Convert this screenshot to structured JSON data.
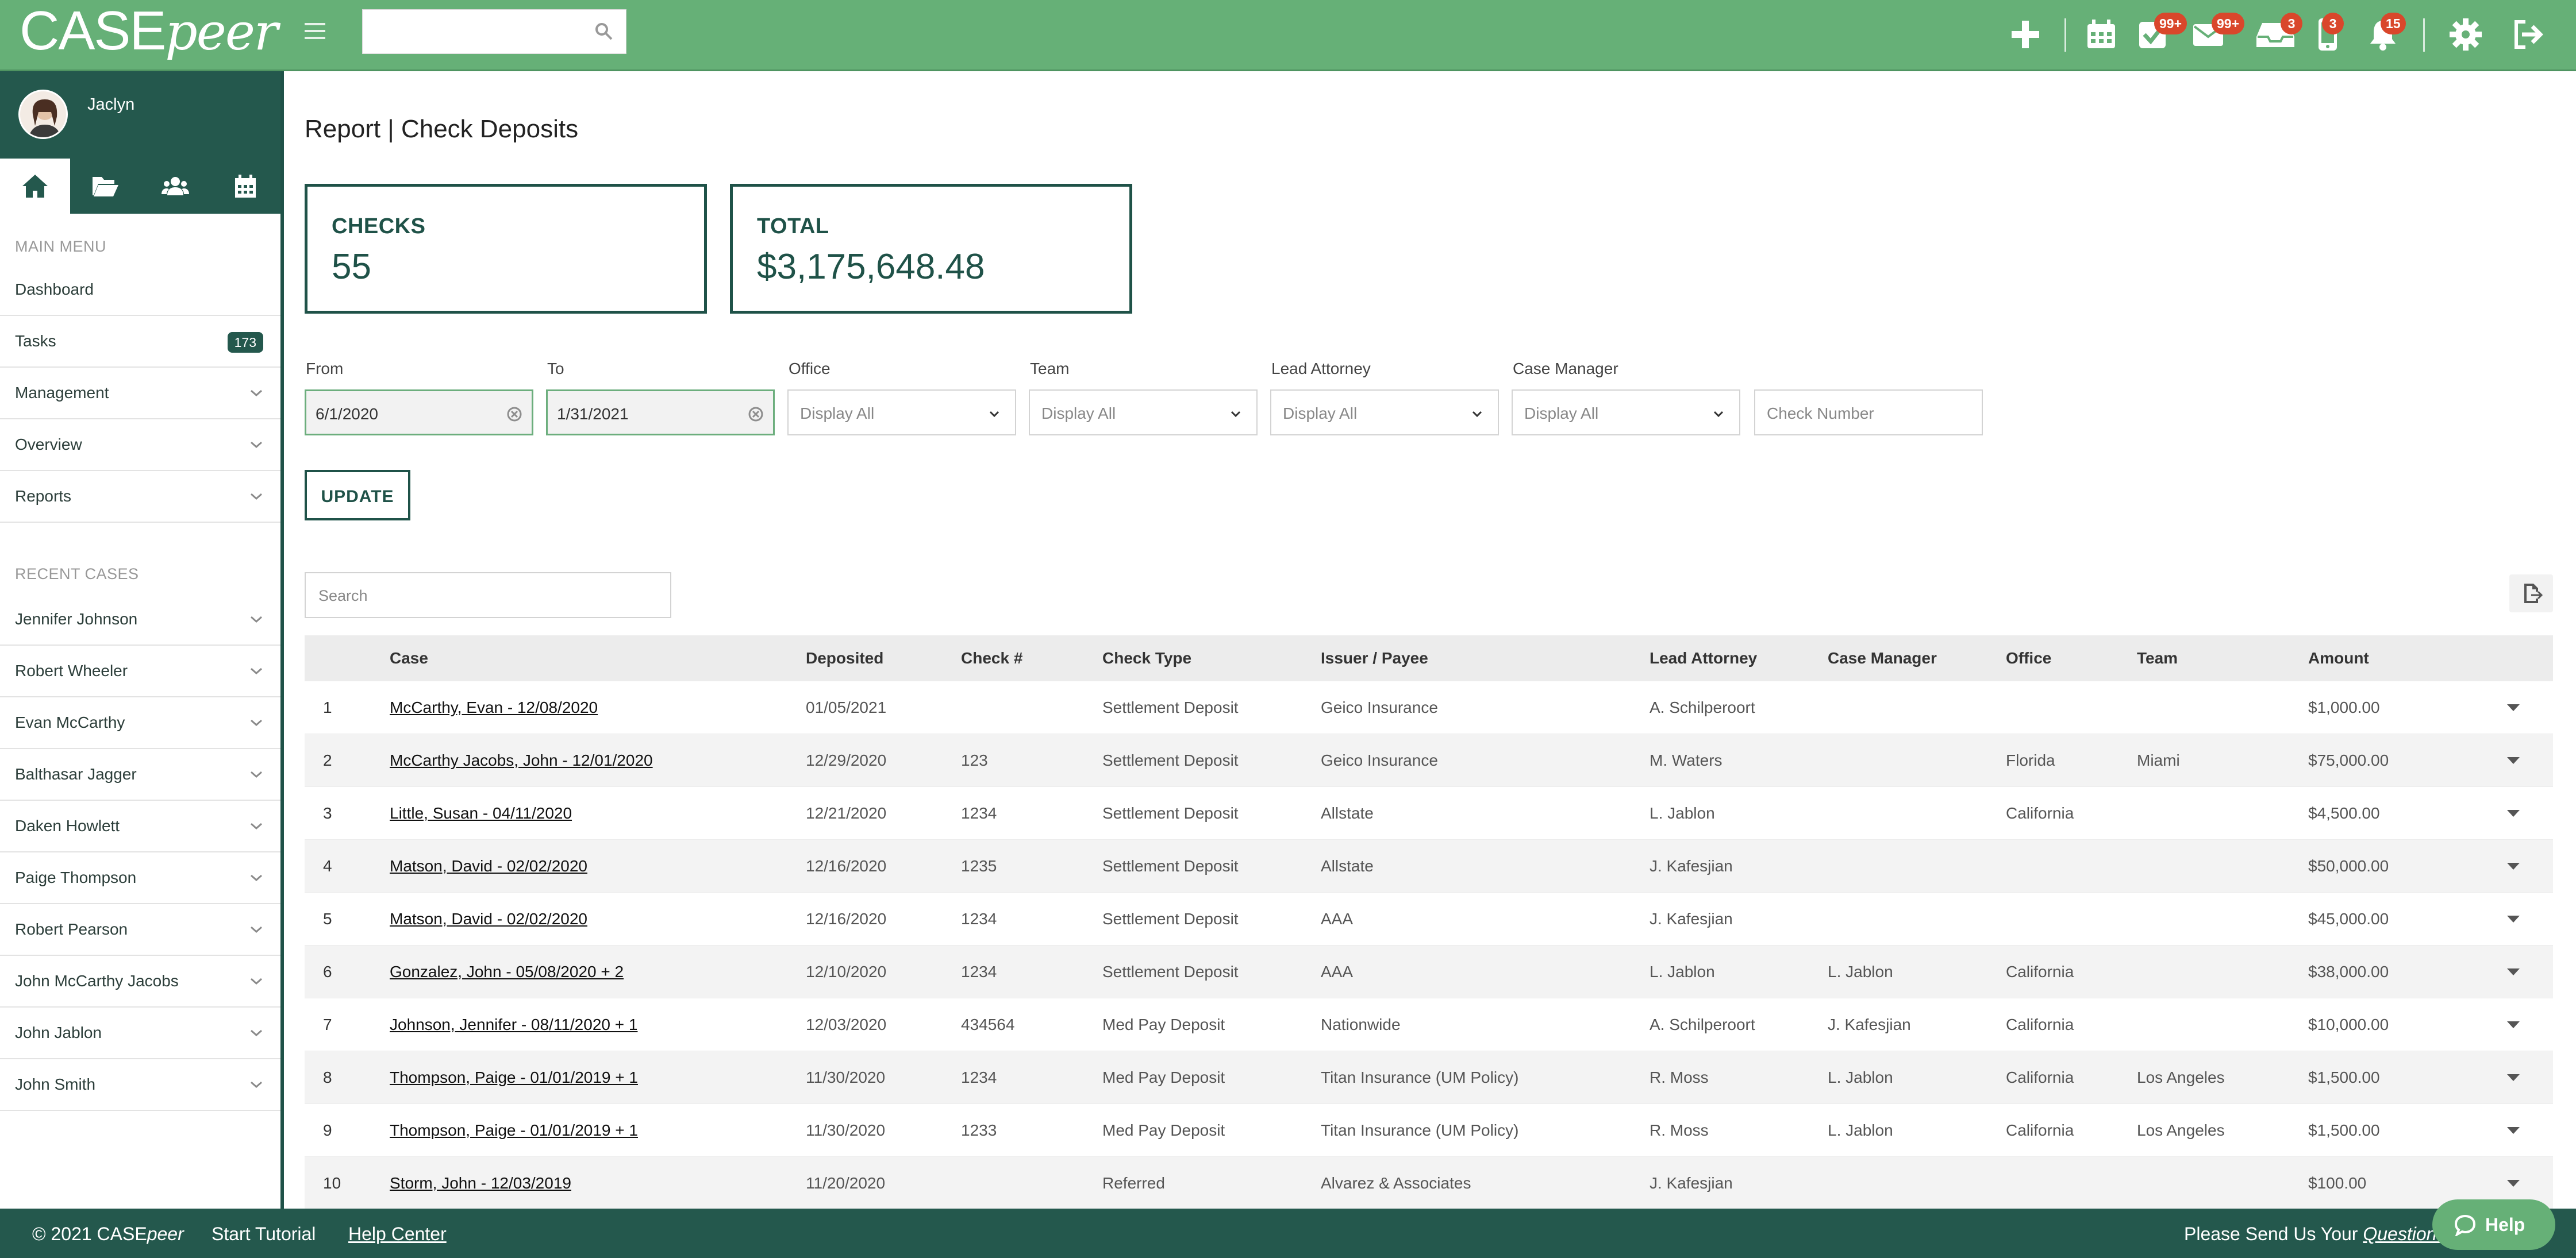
{
  "app": {
    "logo_main": "CASE",
    "logo_sub": "peer"
  },
  "header": {
    "search_placeholder": "",
    "badges": {
      "tasks": "99+",
      "mail": "99+",
      "inbox": "3",
      "phone": "3",
      "notifications": "15"
    }
  },
  "sidebar": {
    "username": "Jaclyn",
    "main_menu_heading": "MAIN MENU",
    "main_menu": [
      {
        "label": "Dashboard"
      },
      {
        "label": "Tasks",
        "count": "173"
      },
      {
        "label": "Management"
      },
      {
        "label": "Overview"
      },
      {
        "label": "Reports"
      }
    ],
    "recent_heading": "RECENT CASES",
    "recent_cases": [
      {
        "label": "Jennifer Johnson"
      },
      {
        "label": "Robert Wheeler"
      },
      {
        "label": "Evan McCarthy"
      },
      {
        "label": "Balthasar Jagger"
      },
      {
        "label": "Daken Howlett"
      },
      {
        "label": "Paige Thompson"
      },
      {
        "label": "Robert Pearson"
      },
      {
        "label": "John McCarthy Jacobs"
      },
      {
        "label": "John Jablon"
      },
      {
        "label": "John Smith"
      }
    ]
  },
  "page": {
    "title": "Report | Check Deposits",
    "stats": {
      "checks_label": "CHECKS",
      "checks_value": "55",
      "total_label": "TOTAL",
      "total_value": "$3,175,648.48"
    },
    "filters": {
      "from_label": "From",
      "from_value": "6/1/2020",
      "to_label": "To",
      "to_value": "1/31/2021",
      "office_label": "Office",
      "office_value": "Display All",
      "team_label": "Team",
      "team_value": "Display All",
      "lead_attorney_label": "Lead Attorney",
      "lead_attorney_value": "Display All",
      "case_manager_label": "Case Manager",
      "case_manager_value": "Display All",
      "check_number_placeholder": "Check Number"
    },
    "update_label": "UPDATE",
    "table_search_placeholder": "Search"
  },
  "table": {
    "columns": {
      "case": "Case",
      "deposited": "Deposited",
      "check": "Check #",
      "check_type": "Check Type",
      "issuer": "Issuer / Payee",
      "lead_attorney": "Lead Attorney",
      "case_manager": "Case Manager",
      "office": "Office",
      "team": "Team",
      "amount": "Amount"
    },
    "rows": [
      {
        "num": "1",
        "case": "McCarthy, Evan - 12/08/2020",
        "deposited": "01/05/2021",
        "check": "",
        "check_type": "Settlement Deposit",
        "issuer": "Geico Insurance",
        "lead_attorney": "A. Schilperoort",
        "case_manager": "",
        "office": "",
        "team": "",
        "amount": "$1,000.00"
      },
      {
        "num": "2",
        "case": "McCarthy Jacobs, John - 12/01/2020",
        "deposited": "12/29/2020",
        "check": "123",
        "check_type": "Settlement Deposit",
        "issuer": "Geico Insurance",
        "lead_attorney": "M. Waters",
        "case_manager": "",
        "office": "Florida",
        "team": "Miami",
        "amount": "$75,000.00"
      },
      {
        "num": "3",
        "case": "Little, Susan - 04/11/2020",
        "deposited": "12/21/2020",
        "check": "1234",
        "check_type": "Settlement Deposit",
        "issuer": "Allstate",
        "lead_attorney": "L. Jablon",
        "case_manager": "",
        "office": "California",
        "team": "",
        "amount": "$4,500.00"
      },
      {
        "num": "4",
        "case": "Matson, David - 02/02/2020",
        "deposited": "12/16/2020",
        "check": "1235",
        "check_type": "Settlement Deposit",
        "issuer": "Allstate",
        "lead_attorney": "J. Kafesjian",
        "case_manager": "",
        "office": "",
        "team": "",
        "amount": "$50,000.00"
      },
      {
        "num": "5",
        "case": "Matson, David - 02/02/2020",
        "deposited": "12/16/2020",
        "check": "1234",
        "check_type": "Settlement Deposit",
        "issuer": "AAA",
        "lead_attorney": "J. Kafesjian",
        "case_manager": "",
        "office": "",
        "team": "",
        "amount": "$45,000.00"
      },
      {
        "num": "6",
        "case": "Gonzalez, John - 05/08/2020 + 2",
        "deposited": "12/10/2020",
        "check": "1234",
        "check_type": "Settlement Deposit",
        "issuer": "AAA",
        "lead_attorney": "L. Jablon",
        "case_manager": "L. Jablon",
        "office": "California",
        "team": "",
        "amount": "$38,000.00"
      },
      {
        "num": "7",
        "case": "Johnson, Jennifer - 08/11/2020 + 1",
        "deposited": "12/03/2020",
        "check": "434564",
        "check_type": "Med Pay Deposit",
        "issuer": "Nationwide",
        "lead_attorney": "A. Schilperoort",
        "case_manager": "J. Kafesjian",
        "office": "California",
        "team": "",
        "amount": "$10,000.00"
      },
      {
        "num": "8",
        "case": "Thompson, Paige - 01/01/2019 + 1",
        "deposited": "11/30/2020",
        "check": "1234",
        "check_type": "Med Pay Deposit",
        "issuer": "Titan Insurance (UM Policy)",
        "lead_attorney": "R. Moss",
        "case_manager": "L. Jablon",
        "office": "California",
        "team": "Los Angeles",
        "amount": "$1,500.00"
      },
      {
        "num": "9",
        "case": "Thompson, Paige - 01/01/2019 + 1",
        "deposited": "11/30/2020",
        "check": "1233",
        "check_type": "Med Pay Deposit",
        "issuer": "Titan Insurance (UM Policy)",
        "lead_attorney": "R. Moss",
        "case_manager": "L. Jablon",
        "office": "California",
        "team": "Los Angeles",
        "amount": "$1,500.00"
      },
      {
        "num": "10",
        "case": "Storm, John - 12/03/2019",
        "deposited": "11/20/2020",
        "check": "",
        "check_type": "Referred",
        "issuer": "Alvarez & Associates",
        "lead_attorney": "J. Kafesjian",
        "case_manager": "",
        "office": "",
        "team": "",
        "amount": "$100.00"
      }
    ]
  },
  "footer": {
    "copyright_prefix": "© 2021 CASE",
    "copyright_brand": "peer",
    "start_tutorial": "Start Tutorial",
    "help_center": "Help Center",
    "feedback_prefix": "Please Send Us Your ",
    "feedback_link": "Questions",
    "help_button": "Help"
  },
  "colors": {
    "brand_green": "#66b077",
    "dark_teal": "#24584d",
    "badge_red": "#d9472b"
  }
}
